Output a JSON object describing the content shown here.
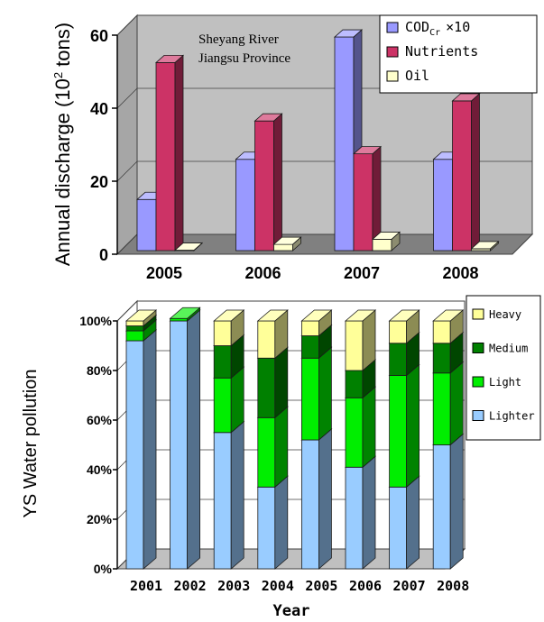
{
  "chart_data": [
    {
      "type": "bar",
      "subtype": "3d-clustered",
      "ylabel_main": "Annual discharge (10",
      "ylabel_sup": "2",
      "ylabel_tail": " tons)",
      "annotation": [
        "Sheyang River",
        "Jiangsu Province"
      ],
      "categories": [
        "2005",
        "2006",
        "2007",
        "2008"
      ],
      "ylim": [
        0,
        60
      ],
      "yticks": [
        "0",
        "20",
        "40",
        "60"
      ],
      "grid": true,
      "legend_position": "top-right",
      "series": [
        {
          "name": "COD",
          "name_sub": "Cr",
          "name_suffix": "×10",
          "color": "#9999ff",
          "values": [
            14.5,
            25.5,
            59,
            25.5
          ]
        },
        {
          "name": "Nutrients",
          "color": "#cc3366",
          "values": [
            52,
            36,
            27,
            41.5
          ]
        },
        {
          "name": "Oil",
          "color": "#ffffcc",
          "values": [
            0.6,
            2.2,
            3.6,
            1.0
          ]
        }
      ]
    },
    {
      "type": "bar",
      "subtype": "3d-stacked-percent",
      "ylabel": "YS Water pollution",
      "xlabel": "Year",
      "categories": [
        "2001",
        "2002",
        "2003",
        "2004",
        "2005",
        "2006",
        "2007",
        "2008"
      ],
      "ylim": [
        0,
        100
      ],
      "yticks": [
        "0%",
        "20%",
        "40%",
        "60%",
        "80%",
        "100%"
      ],
      "grid": true,
      "legend_position": "right",
      "series": [
        {
          "name": "Lighter",
          "color": "#99ccff",
          "values": [
            92,
            100,
            55,
            33,
            52,
            41,
            33,
            50
          ]
        },
        {
          "name": "Light",
          "color": "#00ee00",
          "values": [
            4,
            1,
            22,
            28,
            33,
            28,
            45,
            29
          ]
        },
        {
          "name": "Medium",
          "color": "#008000",
          "values": [
            2,
            0,
            13,
            24,
            9,
            11,
            13,
            12
          ]
        },
        {
          "name": "Heavy",
          "color": "#ffff99",
          "values": [
            2,
            0,
            10,
            15,
            6,
            20,
            9,
            9
          ]
        }
      ]
    }
  ]
}
